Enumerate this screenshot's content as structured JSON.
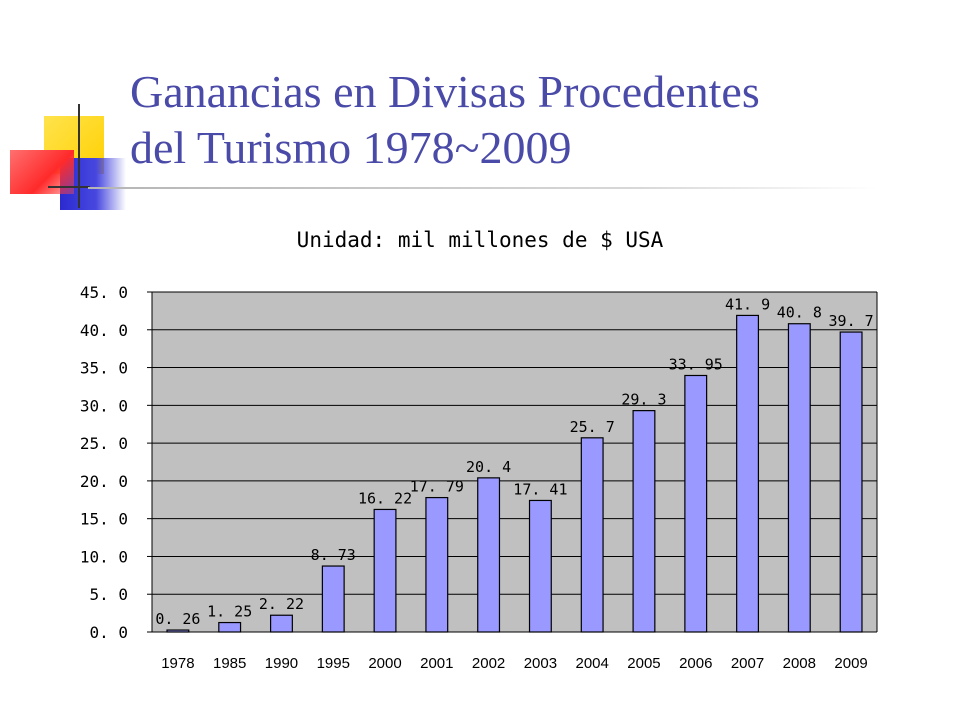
{
  "slide": {
    "title_line1": "Ganancias en Divisas Procedentes",
    "title_line2": "del Turismo 1978~2009"
  },
  "colors": {
    "title": "#4a4aa8",
    "bar_fill": "#9999ff",
    "plot_background": "#c0c0c0",
    "deco_yellow": "#ffd700",
    "deco_red": "#ff3b3b",
    "deco_blue": "#3a3ad8"
  },
  "chart_data": {
    "type": "bar",
    "title": "Unidad: mil millones de $ USA",
    "xlabel": "",
    "ylabel": "",
    "categories": [
      "1978",
      "1985",
      "1990",
      "1995",
      "2000",
      "2001",
      "2002",
      "2003",
      "2004",
      "2005",
      "2006",
      "2007",
      "2008",
      "2009"
    ],
    "values": [
      0.26,
      1.25,
      2.22,
      8.73,
      16.22,
      17.79,
      20.4,
      17.41,
      25.7,
      29.3,
      33.95,
      41.9,
      40.8,
      39.7
    ],
    "data_labels": [
      "0. 26",
      "1. 25",
      "2. 22",
      "8. 73",
      "16. 22",
      "17. 79",
      "20. 4",
      "17. 41",
      "25. 7",
      "29. 3",
      "33. 95",
      "41. 9",
      "40. 8",
      "39. 7"
    ],
    "yticks": [
      "0. 0",
      "5. 0",
      "10. 0",
      "15. 0",
      "20. 0",
      "25. 0",
      "30. 0",
      "35. 0",
      "40. 0",
      "45. 0"
    ],
    "ylim": [
      0,
      45
    ],
    "grid": true,
    "legend": "none"
  }
}
